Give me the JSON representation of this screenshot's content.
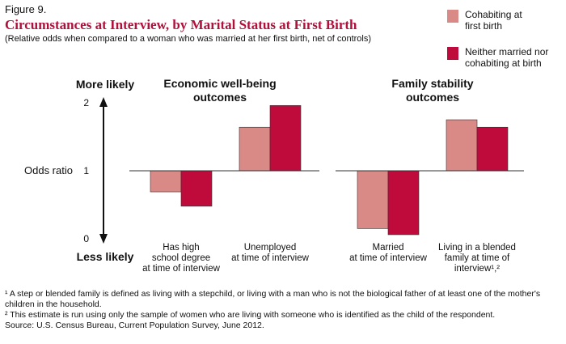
{
  "chart_data": {
    "type": "bar",
    "figure_label": "Figure 9.",
    "title": "Circumstances at Interview, by Marital Status at First Birth",
    "subtitle": "(Relative odds when compared to a woman who was married at her first birth, net of controls)",
    "ylabel": "Odds ratio",
    "top_annotation": "More likely",
    "bottom_annotation": "Less likely",
    "ylim": [
      0,
      2
    ],
    "yticks": [
      0,
      1,
      2
    ],
    "baseline": 1,
    "legend": "top-right",
    "series": [
      {
        "name": "Cohabiting at\nfirst birth",
        "color": "#d98a87"
      },
      {
        "name": "Neither married nor\ncohabiting at birth",
        "color": "#bf0a3c"
      }
    ],
    "panels": [
      {
        "title": "Economic well-being\noutcomes",
        "categories": [
          "Has high\nschool degree\nat time of interview",
          "Unemployed\nat time of interview"
        ],
        "series": [
          {
            "values": [
              0.69,
              1.64
            ]
          },
          {
            "values": [
              0.48,
              1.96
            ]
          }
        ]
      },
      {
        "title": "Family stability\noutcomes",
        "categories": [
          "Married\nat time of interview",
          "Living in a blended\nfamily at time of\ninterview¹,²"
        ],
        "series": [
          {
            "values": [
              0.15,
              1.75
            ]
          },
          {
            "values": [
              0.06,
              1.64
            ]
          }
        ]
      }
    ],
    "notes": [
      "¹ A step or blended family is defined as living with a stepchild, or living with a man who is not the biological father of at least one of the mother's children in the household.",
      "² This estimate is run using only the sample of women who are living with someone who is identified as the child of the respondent.",
      "Source: U.S. Census Bureau, Current Population Survey, June 2012."
    ]
  }
}
